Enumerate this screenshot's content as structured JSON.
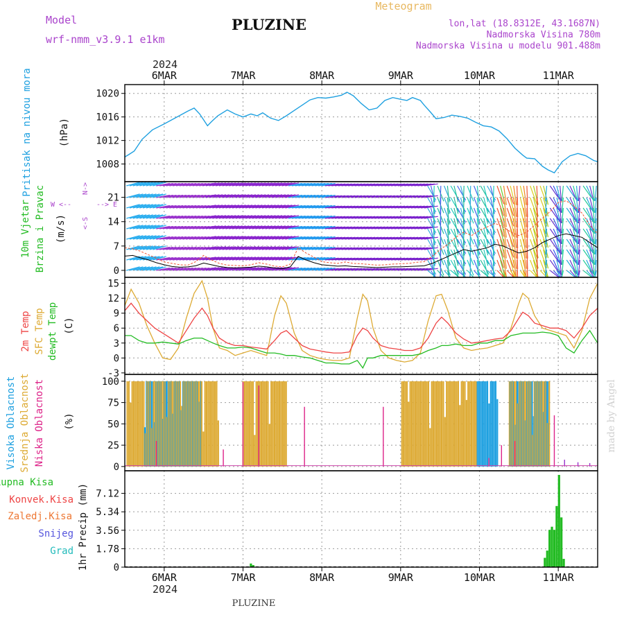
{
  "header": {
    "model_label": "Model",
    "model_name": "wrf-nmm_v3.9.1 e1km",
    "title": "PLUZINE",
    "meteogram_label": "Meteogram",
    "lonlat": "lon,lat (18.8312E, 43.1687N)",
    "elevation": "Nadmorska Visina 780m",
    "model_elevation": "Nadmorska Visina u modelu 901.488m",
    "year": "2024"
  },
  "footer": {
    "station": "PLUZINE",
    "watermark": "made by Angel"
  },
  "dates": [
    "6MAR",
    "7MAR",
    "8MAR",
    "9MAR",
    "10MAR",
    "11MAR"
  ],
  "colors": {
    "pressure": "#1ea0e0",
    "wind_speed": "#000000",
    "wind_gust": "#ee5533",
    "temp_2m": "#ee4444",
    "temp_sfc": "#ddaa33",
    "dewpt": "#22bb22",
    "cloud_high": "#1ea0e0",
    "cloud_mid": "#ddaa33",
    "cloud_low": "#dd2288",
    "precip_total": "#22bb22",
    "grid": "#999999"
  },
  "chart_data": [
    {
      "type": "line",
      "ylabel": "Pritisak na nivou mora",
      "unit": "(hPa)",
      "yticks": [
        "1008",
        "1012",
        "1016",
        "1020"
      ],
      "ylim": [
        1005,
        1021.5
      ],
      "x": [
        5.5,
        5.55,
        5.62,
        5.72,
        5.85,
        6.0,
        6.15,
        6.3,
        6.38,
        6.45,
        6.5,
        6.55,
        6.6,
        6.68,
        6.8,
        6.9,
        7.0,
        7.1,
        7.18,
        7.25,
        7.35,
        7.45,
        7.55,
        7.65,
        7.75,
        7.85,
        7.95,
        8.05,
        8.15,
        8.25,
        8.32,
        8.4,
        8.5,
        8.6,
        8.7,
        8.8,
        8.9,
        9.0,
        9.08,
        9.15,
        9.25,
        9.3,
        9.38,
        9.45,
        9.55,
        9.65,
        9.75,
        9.85,
        9.95,
        10.05,
        10.15,
        10.25,
        10.35,
        10.45,
        10.55,
        10.6,
        10.7,
        10.8,
        10.87,
        10.95,
        11.05,
        11.15,
        11.25,
        11.35,
        11.45,
        11.5
      ],
      "values": [
        1009.2,
        1009.6,
        1010.2,
        1012.2,
        1013.8,
        1014.8,
        1015.9,
        1017.0,
        1017.5,
        1016.5,
        1015.5,
        1014.5,
        1015.2,
        1016.2,
        1017.2,
        1016.5,
        1016.0,
        1016.5,
        1016.2,
        1016.7,
        1015.8,
        1015.4,
        1016.2,
        1017.1,
        1018.0,
        1018.9,
        1019.3,
        1019.2,
        1019.4,
        1019.7,
        1020.2,
        1019.6,
        1018.3,
        1017.2,
        1017.5,
        1018.8,
        1019.3,
        1019.0,
        1018.8,
        1019.3,
        1018.8,
        1018.0,
        1016.8,
        1015.7,
        1015.9,
        1016.3,
        1016.1,
        1015.8,
        1015.1,
        1014.5,
        1014.3,
        1013.6,
        1012.3,
        1010.7,
        1009.5,
        1009.0,
        1008.9,
        1007.6,
        1007.0,
        1006.5,
        1008.4,
        1009.4,
        1009.8,
        1009.4,
        1008.6,
        1008.4
      ]
    },
    {
      "type": "line",
      "ylabel_1": "10m Vjetar",
      "ylabel_2": "Brzina i Pravac",
      "unit": "(m/s)",
      "compass_north": "N->",
      "compass_west": "W <--",
      "compass_east": "--> E",
      "compass_south": "<-S",
      "yticks": [
        "0",
        "7",
        "14",
        "21"
      ],
      "ylim": [
        -2,
        25.5
      ],
      "x": [
        5.5,
        5.6,
        5.7,
        5.8,
        5.9,
        6.0,
        6.1,
        6.2,
        6.3,
        6.4,
        6.5,
        6.6,
        6.7,
        6.8,
        6.9,
        7.0,
        7.1,
        7.2,
        7.3,
        7.4,
        7.5,
        7.6,
        7.7,
        7.8,
        7.9,
        8.0,
        8.1,
        8.2,
        8.3,
        8.4,
        8.5,
        8.6,
        8.7,
        8.8,
        8.9,
        9.0,
        9.1,
        9.2,
        9.3,
        9.4,
        9.5,
        9.6,
        9.7,
        9.8,
        9.9,
        10.0,
        10.1,
        10.2,
        10.3,
        10.4,
        10.5,
        10.6,
        10.7,
        10.8,
        10.9,
        11.0,
        11.1,
        11.2,
        11.3,
        11.4,
        11.5
      ],
      "values": [
        4.1,
        4.3,
        3.6,
        3.0,
        2.2,
        1.6,
        1.1,
        0.9,
        1.0,
        1.3,
        2.1,
        1.6,
        1.1,
        0.8,
        0.7,
        0.8,
        0.9,
        1.2,
        1.0,
        0.7,
        0.5,
        1.0,
        4.0,
        3.0,
        2.2,
        1.6,
        1.4,
        1.2,
        1.3,
        1.1,
        1.0,
        0.9,
        0.8,
        0.9,
        1.0,
        1.0,
        1.1,
        1.2,
        1.3,
        2.0,
        3.0,
        4.0,
        5.0,
        6.0,
        5.5,
        6.0,
        6.5,
        7.5,
        7.0,
        6.0,
        5.0,
        5.5,
        6.5,
        8.0,
        9.0,
        10.0,
        10.5,
        10.0,
        9.5,
        8.0,
        6.5
      ],
      "gust": [
        6.5,
        6.2,
        5.5,
        4.5,
        3.5,
        2.4,
        2.0,
        1.6,
        1.5,
        2.5,
        4.3,
        3.0,
        2.0,
        1.5,
        1.4,
        1.3,
        1.6,
        2.2,
        1.8,
        1.2,
        1.0,
        1.8,
        6.5,
        5.0,
        3.8,
        2.5,
        2.2,
        2.0,
        2.4,
        2.0,
        1.9,
        1.7,
        1.5,
        1.6,
        1.8,
        1.9,
        2.0,
        2.3,
        2.5,
        4.0,
        6.0,
        7.5,
        9.5,
        11.0,
        10.0,
        11.5,
        12.5,
        13.5,
        12.5,
        11.0,
        10.0,
        11.0,
        13.0,
        15.0,
        17.0,
        19.5,
        20.0,
        18.5,
        16.5,
        13.0,
        10.5
      ]
    },
    {
      "type": "line",
      "ylabel_2m": "2m Temp",
      "ylabel_sfc": "SFC Temp",
      "ylabel_dewpt": "dewpt Temp",
      "unit": "(C)",
      "yticks": [
        "-3",
        "0",
        "3",
        "6",
        "9",
        "12",
        "15"
      ],
      "ylim": [
        -3.3,
        16.2
      ],
      "x": [
        5.5,
        5.58,
        5.68,
        5.78,
        5.88,
        5.98,
        6.08,
        6.18,
        6.28,
        6.38,
        6.48,
        6.55,
        6.62,
        6.7,
        6.8,
        6.9,
        7.0,
        7.1,
        7.2,
        7.3,
        7.4,
        7.48,
        7.55,
        7.65,
        7.75,
        7.85,
        7.95,
        8.05,
        8.15,
        8.25,
        8.35,
        8.45,
        8.52,
        8.58,
        8.65,
        8.75,
        8.85,
        8.95,
        9.05,
        9.15,
        9.25,
        9.35,
        9.45,
        9.52,
        9.6,
        9.7,
        9.8,
        9.9,
        10.0,
        10.1,
        10.2,
        10.3,
        10.4,
        10.5,
        10.55,
        10.62,
        10.7,
        10.8,
        10.9,
        11.0,
        11.1,
        11.2,
        11.3,
        11.4,
        11.5
      ],
      "values": [
        9.5,
        11.0,
        9.0,
        7.5,
        6.0,
        5.0,
        4.0,
        3.0,
        5.5,
        8.0,
        10.0,
        8.5,
        6.0,
        4.0,
        3.0,
        2.5,
        2.5,
        2.2,
        2.0,
        1.8,
        3.5,
        5.0,
        5.5,
        4.0,
        2.5,
        1.8,
        1.5,
        1.2,
        1.0,
        1.0,
        1.2,
        4.5,
        6.0,
        5.5,
        4.0,
        2.5,
        2.0,
        1.8,
        1.5,
        1.5,
        2.0,
        4.0,
        7.0,
        8.2,
        7.0,
        5.0,
        3.8,
        3.0,
        3.2,
        3.5,
        3.8,
        4.0,
        5.5,
        8.0,
        9.2,
        8.5,
        7.0,
        6.5,
        6.0,
        6.0,
        5.5,
        4.0,
        6.0,
        8.5,
        10.0
      ],
      "sfc": [
        10.5,
        13.8,
        11.0,
        6.5,
        3.0,
        0.0,
        -0.3,
        2.0,
        8.0,
        13.0,
        15.5,
        12.0,
        6.0,
        2.0,
        1.5,
        0.5,
        1.0,
        1.5,
        1.0,
        0.5,
        8.5,
        12.5,
        11.0,
        5.0,
        1.5,
        0.5,
        0.0,
        -0.3,
        -0.5,
        -0.5,
        0.0,
        8.0,
        12.8,
        11.5,
        6.0,
        1.5,
        0.0,
        -0.5,
        -0.8,
        -0.5,
        1.0,
        7.5,
        12.5,
        12.8,
        9.5,
        4.0,
        2.0,
        1.5,
        1.8,
        2.0,
        2.5,
        3.0,
        6.0,
        11.0,
        13.0,
        12.0,
        8.5,
        6.0,
        5.5,
        5.0,
        4.5,
        2.0,
        5.5,
        12.0,
        15.0
      ],
      "dewpt": [
        4.5,
        4.5,
        3.5,
        3.0,
        3.0,
        3.2,
        3.0,
        2.8,
        3.5,
        4.0,
        4.0,
        3.5,
        3.0,
        2.5,
        2.0,
        2.0,
        2.2,
        2.0,
        1.5,
        1.0,
        1.0,
        0.8,
        0.5,
        0.5,
        0.2,
        0.0,
        -0.5,
        -1.0,
        -1.0,
        -1.2,
        -1.2,
        -0.5,
        -2.0,
        0.0,
        0.0,
        0.5,
        0.5,
        0.5,
        0.5,
        0.5,
        0.8,
        1.5,
        2.0,
        2.5,
        2.5,
        2.8,
        2.5,
        2.5,
        3.0,
        3.0,
        3.5,
        3.5,
        4.5,
        4.8,
        5.0,
        5.0,
        5.0,
        5.2,
        5.0,
        4.5,
        2.0,
        1.0,
        3.5,
        5.5,
        3.0
      ]
    },
    {
      "type": "bar",
      "ylabel_high": "Visoka Oblacnost",
      "ylabel_mid": "Srednja Oblacnost",
      "ylabel_low": "Niska Oblacnost",
      "unit": "(%)",
      "yticks": [
        "0",
        "25",
        "50",
        "75",
        "100"
      ],
      "ylim": [
        -5,
        108
      ],
      "high_ranges": [
        [
          5.73,
          6.47
        ],
        [
          9.95,
          10.23
        ],
        [
          10.37,
          10.88
        ]
      ],
      "mid_ranges": [
        [
          5.53,
          6.7
        ],
        [
          7.0,
          7.55
        ],
        [
          9.0,
          9.98
        ],
        [
          10.37,
          10.9
        ]
      ],
      "low_spikes": [
        [
          5.9,
          30
        ],
        [
          6.75,
          20
        ],
        [
          7.0,
          99
        ],
        [
          7.2,
          95
        ],
        [
          7.78,
          70
        ],
        [
          8.78,
          70
        ],
        [
          10.12,
          10
        ],
        [
          10.28,
          25
        ],
        [
          10.45,
          30
        ],
        [
          10.95,
          60
        ]
      ],
      "low_level": 1,
      "trailing": [
        [
          11.08,
          8
        ],
        [
          11.25,
          5
        ],
        [
          11.4,
          4
        ]
      ]
    },
    {
      "type": "bar",
      "legend": [
        "Ukupna Kisa",
        "Konvek.Kisa",
        "Zaledj.Kisa",
        "Snijeg",
        "Grad"
      ],
      "ylabel": "1hr Precip (mm)",
      "yticks": [
        "0",
        "1.78",
        "3.56",
        "5.34",
        "7.12"
      ],
      "ylim": [
        0,
        9.3
      ],
      "x": [
        6.52,
        7.1,
        7.13,
        10.83,
        10.86,
        10.89,
        10.92,
        10.95,
        10.98,
        11.01,
        11.04,
        11.07
      ],
      "values": [
        0.05,
        0.35,
        0.2,
        0.9,
        1.6,
        3.6,
        3.9,
        3.6,
        5.9,
        8.9,
        4.8,
        0.8
      ]
    }
  ]
}
